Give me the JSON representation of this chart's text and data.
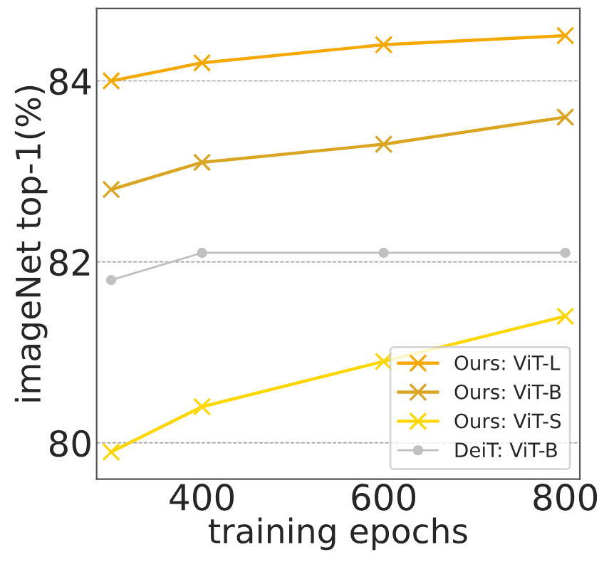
{
  "chart_data": {
    "type": "line",
    "xlabel": "training epochs",
    "ylabel": "imageNet top-1(%)",
    "x": [
      300,
      400,
      600,
      800
    ],
    "series": [
      {
        "name": "Ours: ViT-L",
        "color": "#f5a800",
        "values": [
          84.0,
          84.2,
          84.4,
          84.5
        ],
        "marker": "cross"
      },
      {
        "name": "Ours: ViT-B",
        "color": "#daa520",
        "values": [
          82.8,
          83.1,
          83.3,
          83.6
        ],
        "marker": "cross"
      },
      {
        "name": "Ours: ViT-S",
        "color": "#ffd700",
        "values": [
          79.9,
          80.4,
          80.9,
          81.4
        ],
        "marker": "cross"
      },
      {
        "name": "DeiT: ViT-B",
        "color": "#c0c0c0",
        "values": [
          81.8,
          82.1,
          82.1,
          82.1
        ],
        "marker": "circle"
      }
    ],
    "xlim": [
      284,
      816
    ],
    "xticks": [
      400,
      600,
      800
    ],
    "ylim": [
      79.6,
      84.8
    ],
    "yticks": [
      80,
      82,
      84
    ],
    "grid": "y",
    "legend": "bottom right"
  }
}
